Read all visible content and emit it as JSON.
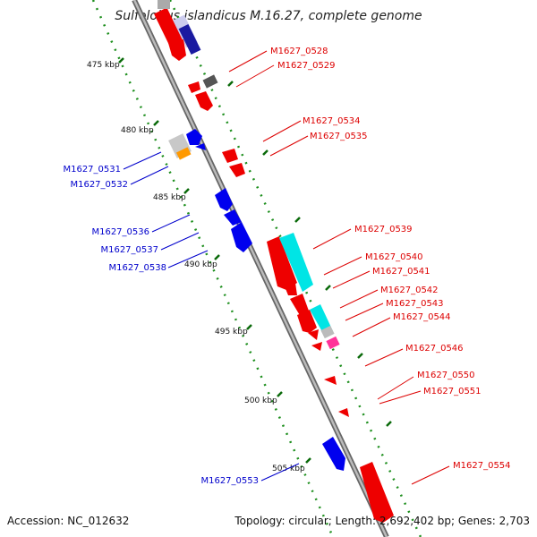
{
  "title": "Sulfolobus islandicus M.16.27, complete genome",
  "footer": {
    "accession": "Accession: NC_012632",
    "topology": "Topology: circular; Length: 2,692,402 bp; Genes: 2,703"
  },
  "scale_labels": [
    "475 kbp",
    "480 kbp",
    "485 kbp",
    "490 kbp",
    "495 kbp",
    "500 kbp",
    "505 kbp"
  ],
  "genes_forward": [
    "M1627_0528",
    "M1627_0529",
    "M1627_0534",
    "M1627_0535",
    "M1627_0539",
    "M1627_0540",
    "M1627_0541",
    "M1627_0542",
    "M1627_0543",
    "M1627_0544",
    "M1627_0546",
    "M1627_0550",
    "M1627_0551",
    "M1627_0554"
  ],
  "genes_reverse": [
    "M1627_0531",
    "M1627_0532",
    "M1627_0536",
    "M1627_0537",
    "M1627_0538",
    "M1627_0553"
  ],
  "colors": {
    "forward_label": "#dd0000",
    "reverse_label": "#0000cc",
    "backbone": "#999999",
    "tick": "#228b22",
    "cds_red": "#ee0000",
    "cds_blue": "#0000dd",
    "cyan": "#00e5e5",
    "gray": "#aaaaaa",
    "orange": "#ff9900",
    "magenta": "#ff3399"
  }
}
